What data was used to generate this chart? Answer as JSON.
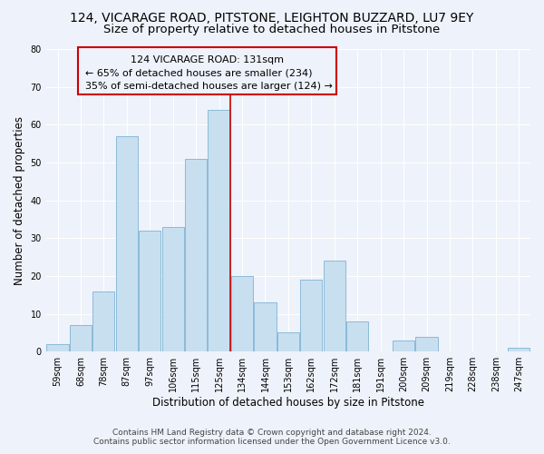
{
  "title": "124, VICARAGE ROAD, PITSTONE, LEIGHTON BUZZARD, LU7 9EY",
  "subtitle": "Size of property relative to detached houses in Pitstone",
  "xlabel": "Distribution of detached houses by size in Pitstone",
  "ylabel": "Number of detached properties",
  "bar_labels": [
    "59sqm",
    "68sqm",
    "78sqm",
    "87sqm",
    "97sqm",
    "106sqm",
    "115sqm",
    "125sqm",
    "134sqm",
    "144sqm",
    "153sqm",
    "162sqm",
    "172sqm",
    "181sqm",
    "191sqm",
    "200sqm",
    "209sqm",
    "219sqm",
    "228sqm",
    "238sqm",
    "247sqm"
  ],
  "bar_values": [
    2,
    7,
    16,
    57,
    32,
    33,
    51,
    64,
    20,
    13,
    5,
    19,
    24,
    8,
    0,
    3,
    4,
    0,
    0,
    0,
    1
  ],
  "bar_color": "#c8dff0",
  "bar_edge_color": "#7fb3d3",
  "vline_x_index": 7.5,
  "vline_color": "#cc0000",
  "ann_line1": "124 VICARAGE ROAD: 131sqm",
  "ann_line2": "← 65% of detached houses are smaller (234)",
  "ann_line3": "35% of semi-detached houses are larger (124) →",
  "box_edge_color": "#cc0000",
  "ylim": [
    0,
    80
  ],
  "yticks": [
    0,
    10,
    20,
    30,
    40,
    50,
    60,
    70,
    80
  ],
  "footer_line1": "Contains HM Land Registry data © Crown copyright and database right 2024.",
  "footer_line2": "Contains public sector information licensed under the Open Government Licence v3.0.",
  "bg_color": "#eef2fa",
  "grid_color": "#ffffff",
  "title_fontsize": 10,
  "subtitle_fontsize": 9.5,
  "axis_label_fontsize": 8.5,
  "tick_fontsize": 7,
  "annotation_fontsize": 8,
  "footer_fontsize": 6.5
}
